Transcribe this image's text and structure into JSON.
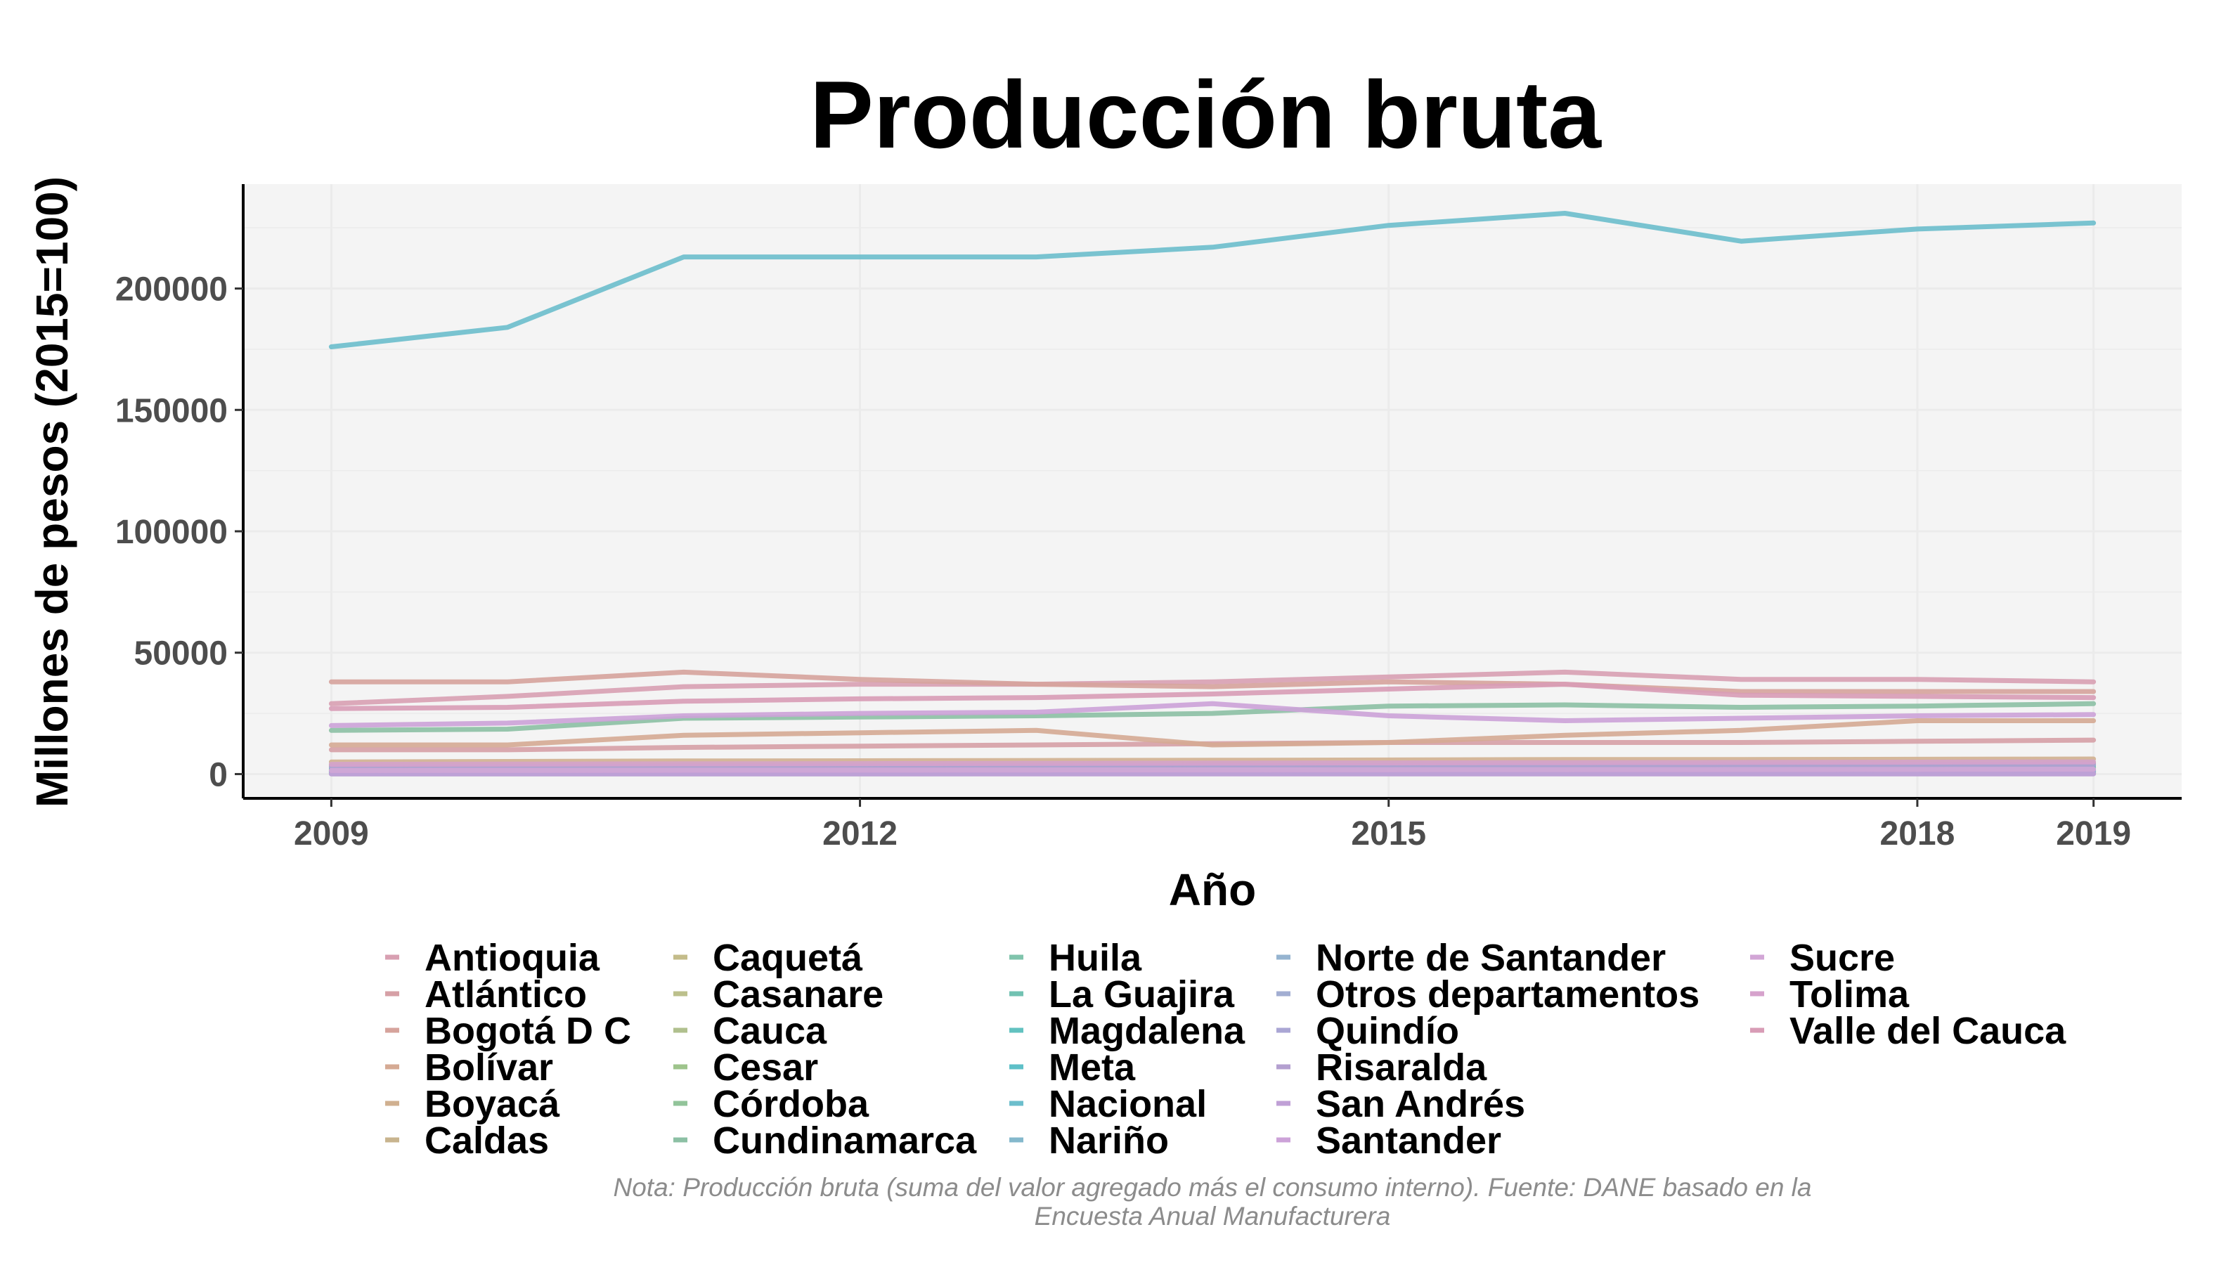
{
  "chart_data": {
    "type": "line",
    "title": "Producción bruta",
    "xlabel": "Año",
    "ylabel": "Millones de pesos (2015=100)",
    "x": [
      2009,
      2010,
      2011,
      2012,
      2013,
      2014,
      2015,
      2016,
      2017,
      2018,
      2019
    ],
    "xticks": [
      2009,
      2012,
      2015,
      2018,
      2019
    ],
    "yticks": [
      0,
      50000,
      100000,
      150000,
      200000
    ],
    "ylim": [
      -10000,
      243000
    ],
    "xlim": [
      2008.5,
      2019.5
    ],
    "grid": true,
    "legend_position": "bottom",
    "series": [
      {
        "name": "Antioquia",
        "color": "#d8a0b2",
        "values": [
          29000,
          32000,
          36000,
          37000,
          37000,
          38000,
          40000,
          42000,
          39000,
          39000,
          38000
        ]
      },
      {
        "name": "Atlántico",
        "color": "#d6a0a6",
        "values": [
          10000,
          10000,
          11000,
          11500,
          12000,
          12500,
          13000,
          13000,
          13000,
          13500,
          14000
        ]
      },
      {
        "name": "Bogotá D C",
        "color": "#d6a39c",
        "values": [
          38000,
          38000,
          42000,
          39000,
          37000,
          36000,
          38000,
          37000,
          34000,
          34000,
          34000
        ]
      },
      {
        "name": "Bolívar",
        "color": "#d5aa94",
        "values": [
          12000,
          12000,
          16000,
          17000,
          18000,
          12000,
          13000,
          16000,
          18000,
          22000,
          22000
        ]
      },
      {
        "name": "Boyacá",
        "color": "#d0b090",
        "values": [
          5000,
          5200,
          5400,
          5500,
          5600,
          5700,
          5800,
          6000,
          6000,
          6100,
          6200
        ]
      },
      {
        "name": "Caldas",
        "color": "#c8b48e",
        "values": [
          3500,
          3600,
          3700,
          3800,
          3800,
          3900,
          4000,
          4100,
          4100,
          4200,
          4200
        ]
      },
      {
        "name": "Caquetá",
        "color": "#c4bc8a",
        "values": [
          200,
          200,
          210,
          220,
          220,
          230,
          240,
          240,
          250,
          250,
          260
        ]
      },
      {
        "name": "Casanare",
        "color": "#bcc08c",
        "values": [
          800,
          820,
          850,
          870,
          880,
          900,
          920,
          930,
          940,
          950,
          960
        ]
      },
      {
        "name": "Cauca",
        "color": "#b0c08e",
        "values": [
          3800,
          3900,
          4000,
          4100,
          4200,
          4300,
          4400,
          4500,
          4600,
          4700,
          4800
        ]
      },
      {
        "name": "Cesar",
        "color": "#9ec48c",
        "values": [
          2000,
          2100,
          2200,
          2300,
          2300,
          2400,
          2500,
          2500,
          2600,
          2600,
          2700
        ]
      },
      {
        "name": "Córdoba",
        "color": "#92c49a",
        "values": [
          1800,
          1900,
          2000,
          2100,
          2100,
          2200,
          2300,
          2300,
          2400,
          2400,
          2500
        ]
      },
      {
        "name": "Cundinamarca",
        "color": "#8cc0a4",
        "values": [
          18000,
          18500,
          23000,
          23500,
          24000,
          25000,
          28000,
          28500,
          27500,
          28000,
          29000
        ]
      },
      {
        "name": "Huila",
        "color": "#80c4ac",
        "values": [
          900,
          920,
          940,
          960,
          980,
          1000,
          1020,
          1040,
          1060,
          1080,
          1100
        ]
      },
      {
        "name": "La Guajira",
        "color": "#72c2b2",
        "values": [
          300,
          310,
          320,
          330,
          340,
          350,
          360,
          370,
          380,
          390,
          400
        ]
      },
      {
        "name": "Magdalena",
        "color": "#62c2c0",
        "values": [
          1000,
          1020,
          1040,
          1060,
          1080,
          1100,
          1120,
          1140,
          1160,
          1180,
          1200
        ]
      },
      {
        "name": "Meta",
        "color": "#5ec0c8",
        "values": [
          2500,
          2600,
          2700,
          2800,
          2900,
          3000,
          3100,
          3200,
          3300,
          3400,
          3500
        ]
      },
      {
        "name": "Nacional",
        "color": "#6cbecc",
        "values": [
          176000,
          184000,
          213000,
          213000,
          213000,
          217000,
          226000,
          231000,
          219500,
          224500,
          227000
        ]
      },
      {
        "name": "Nariño",
        "color": "#84b8cc",
        "values": [
          700,
          710,
          720,
          730,
          740,
          750,
          760,
          770,
          780,
          790,
          800
        ]
      },
      {
        "name": "Norte de Santander",
        "color": "#96b4d0",
        "values": [
          1500,
          1550,
          1600,
          1650,
          1700,
          1750,
          1800,
          1850,
          1900,
          1950,
          2000
        ]
      },
      {
        "name": "Otros departamentos",
        "color": "#a2aed2",
        "values": [
          100,
          100,
          110,
          110,
          120,
          120,
          130,
          130,
          140,
          140,
          150
        ]
      },
      {
        "name": "Quindío",
        "color": "#aaa6d4",
        "values": [
          1200,
          1220,
          1240,
          1260,
          1280,
          1300,
          1320,
          1340,
          1360,
          1380,
          1400
        ]
      },
      {
        "name": "Risaralda",
        "color": "#b4a0d0",
        "values": [
          3000,
          3100,
          3200,
          3300,
          3400,
          3500,
          3600,
          3700,
          3800,
          3900,
          4000
        ]
      },
      {
        "name": "San Andrés",
        "color": "#c0a0d6",
        "values": [
          50,
          50,
          55,
          55,
          60,
          60,
          65,
          65,
          70,
          70,
          75
        ]
      },
      {
        "name": "Santander",
        "color": "#cca2d8",
        "values": [
          20000,
          21000,
          24000,
          25000,
          25500,
          29000,
          24000,
          22000,
          23000,
          24000,
          24500
        ]
      },
      {
        "name": "Sucre",
        "color": "#d2a6d6",
        "values": [
          1500,
          1550,
          1600,
          1650,
          1700,
          1750,
          1800,
          1850,
          1900,
          1950,
          2000
        ]
      },
      {
        "name": "Tolima",
        "color": "#d6a2cc",
        "values": [
          4000,
          4100,
          4200,
          4300,
          4400,
          4500,
          4600,
          4700,
          4800,
          4900,
          5000
        ]
      },
      {
        "name": "Valle del Cauca",
        "color": "#d89cb6",
        "values": [
          27000,
          27500,
          30000,
          31000,
          31500,
          33000,
          35000,
          37000,
          32500,
          32000,
          31500
        ]
      }
    ]
  },
  "note": {
    "line1": "Nota: Producción bruta (suma del valor agregado más el consumo interno). Fuente: DANE basado en la",
    "line2": "Encuesta Anual Manufacturera"
  }
}
